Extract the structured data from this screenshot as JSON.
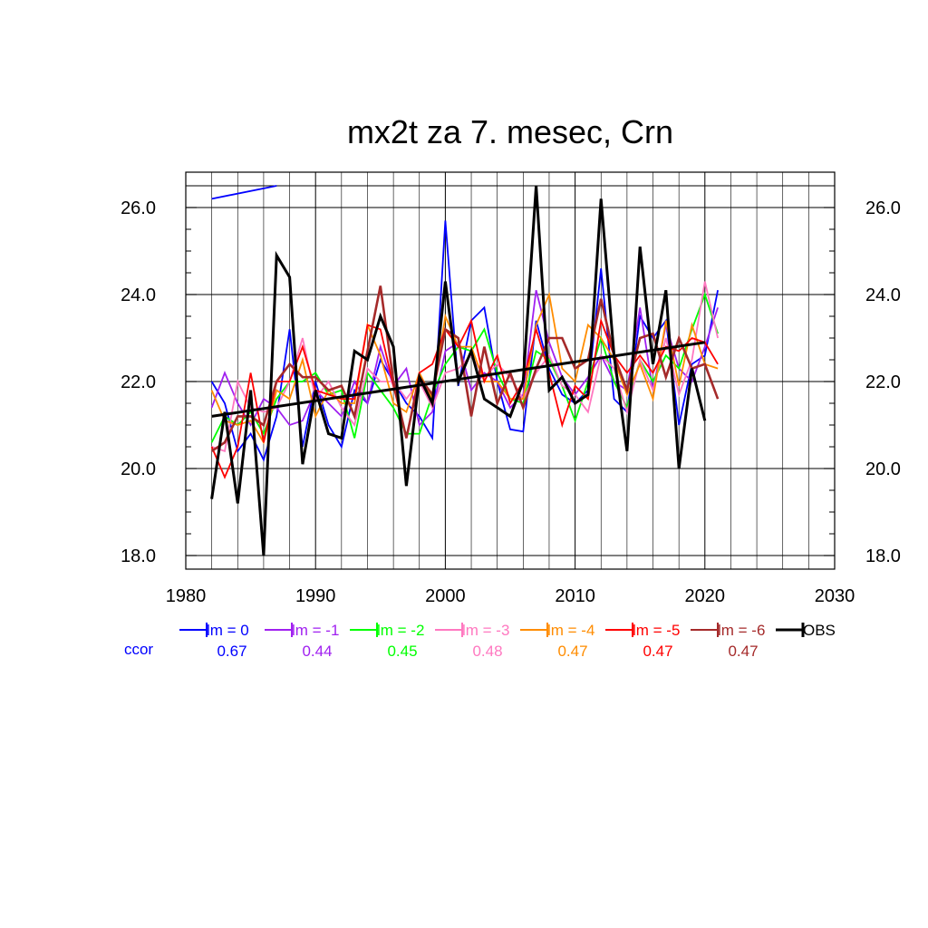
{
  "chart_data": {
    "type": "line",
    "title": "mx2t za 7. mesec, Crn",
    "xlabel": "",
    "ylabel": "",
    "xlim": [
      1980,
      2030
    ],
    "ylim": [
      18.0,
      26.5
    ],
    "x_ticks": [
      1980,
      1990,
      2000,
      2010,
      2020,
      2030
    ],
    "y_ticks": [
      18.0,
      20.0,
      22.0,
      24.0,
      26.0
    ],
    "x_tick_labels": [
      "1980",
      "1990",
      "2000",
      "2010",
      "2020",
      "2030"
    ],
    "y_tick_labels": [
      "18.0",
      "20.0",
      "22.0",
      "24.0",
      "26.0"
    ],
    "x_minor_ticks": [
      1982,
      1984,
      1986,
      1988,
      1992,
      1994,
      1996,
      1998,
      2002,
      2004,
      2006,
      2008,
      2012,
      2014,
      2016,
      2018,
      2022,
      2024,
      2026,
      2028
    ],
    "y_minor_ticks": [
      18.5,
      19.0,
      19.5,
      20.5,
      21.0,
      21.5,
      22.5,
      23.0,
      23.5,
      24.5,
      25.0,
      25.5,
      26.5
    ],
    "grid": true,
    "legend_position": "bottom",
    "ccor_label": "ccor",
    "series": [
      {
        "name": "lm = 0",
        "color": "#0000ff",
        "width": 1.8,
        "ccor": "0.67",
        "x": [
          1982,
          1983,
          1984,
          1985,
          1986,
          1987,
          1988,
          1989,
          1990,
          1991,
          1992,
          1993,
          1994,
          1995,
          1996,
          1997,
          1998,
          1999,
          2000,
          2001,
          2002,
          2003,
          2004,
          2005,
          2006,
          2007,
          2008,
          2009,
          2010,
          2011,
          2012,
          2013,
          2014,
          2015,
          2016,
          2017,
          2018,
          2019,
          2020,
          2021
        ],
        "y": [
          22.0,
          21.5,
          20.4,
          20.8,
          20.2,
          21.2,
          23.2,
          20.5,
          22.0,
          21.0,
          20.5,
          21.8,
          21.5,
          22.5,
          22.0,
          21.5,
          21.2,
          20.7,
          25.7,
          21.9,
          23.4,
          23.7,
          22.0,
          20.9,
          20.85,
          23.4,
          22.3,
          21.7,
          21.5,
          21.8,
          24.6,
          21.6,
          21.3,
          23.5,
          23.0,
          23.4,
          21.0,
          22.4,
          22.6,
          24.1
        ]
      },
      {
        "name": "lm = -1",
        "color": "#a020f0",
        "width": 1.8,
        "ccor": "0.44",
        "x": [
          1982,
          1983,
          1984,
          1985,
          1986,
          1987,
          1988,
          1989,
          1990,
          1991,
          1992,
          1993,
          1994,
          1995,
          1996,
          1997,
          1998,
          1999,
          2000,
          2001,
          2002,
          2003,
          2004,
          2005,
          2006,
          2007,
          2008,
          2009,
          2010,
          2011,
          2012,
          2013,
          2014,
          2015,
          2016,
          2017,
          2018,
          2019,
          2020,
          2021
        ],
        "y": [
          21.4,
          22.2,
          21.5,
          21.0,
          21.6,
          21.4,
          21.0,
          21.1,
          21.8,
          21.5,
          21.2,
          22.0,
          21.5,
          22.8,
          21.9,
          22.3,
          21.0,
          21.3,
          22.7,
          22.9,
          21.8,
          22.2,
          22.0,
          21.4,
          21.7,
          24.1,
          22.9,
          22.1,
          21.7,
          22.1,
          22.6,
          22.0,
          21.8,
          23.7,
          21.8,
          23.3,
          22.3,
          22.0,
          22.8,
          23.7
        ]
      },
      {
        "name": "lm = -2",
        "color": "#00ff00",
        "width": 1.8,
        "ccor": "0.45",
        "x": [
          1982,
          1983,
          1984,
          1985,
          1986,
          1987,
          1988,
          1989,
          1990,
          1991,
          1992,
          1993,
          1994,
          1995,
          1996,
          1997,
          1998,
          1999,
          2000,
          2001,
          2002,
          2003,
          2004,
          2005,
          2006,
          2007,
          2008,
          2009,
          2010,
          2011,
          2012,
          2013,
          2014,
          2015,
          2016,
          2017,
          2018,
          2019,
          2020,
          2021
        ],
        "y": [
          20.6,
          21.2,
          21.0,
          21.3,
          20.8,
          21.6,
          22.0,
          22.0,
          22.2,
          21.7,
          21.8,
          20.7,
          22.2,
          21.8,
          21.4,
          20.8,
          20.8,
          21.7,
          22.4,
          22.8,
          22.7,
          23.2,
          22.2,
          21.6,
          21.5,
          22.7,
          22.5,
          21.9,
          21.1,
          22.0,
          23.0,
          22.0,
          21.4,
          22.5,
          22.0,
          22.6,
          22.3,
          23.2,
          24.0,
          23.1
        ]
      },
      {
        "name": "lm = -3",
        "color": "#ff78c0",
        "width": 1.8,
        "ccor": "0.48",
        "x": [
          1982,
          1983,
          1984,
          1985,
          1986,
          1987,
          1988,
          1989,
          1990,
          1991,
          1992,
          1993,
          1994,
          1995,
          1996,
          1997,
          1998,
          1999,
          2000,
          2001,
          2002,
          2003,
          2004,
          2005,
          2006,
          2007,
          2008,
          2009,
          2010,
          2011,
          2012,
          2013,
          2014,
          2015,
          2016,
          2017,
          2018,
          2019,
          2020,
          2021
        ],
        "y": [
          20.5,
          20.4,
          22.0,
          21.4,
          21.3,
          21.4,
          22.0,
          23.0,
          21.6,
          22.0,
          21.4,
          21.0,
          22.3,
          22.0,
          22.0,
          21.6,
          22.0,
          21.4,
          22.2,
          22.3,
          22.6,
          22.1,
          22.4,
          22.1,
          21.6,
          22.2,
          22.6,
          21.9,
          21.7,
          21.3,
          22.6,
          22.3,
          21.3,
          22.5,
          21.8,
          23.0,
          21.7,
          22.5,
          24.3,
          23.0
        ]
      },
      {
        "name": "lm = -4",
        "color": "#ff8c00",
        "width": 1.8,
        "ccor": "0.47",
        "x": [
          1982,
          1983,
          1984,
          1985,
          1986,
          1987,
          1988,
          1989,
          1990,
          1991,
          1992,
          1993,
          1994,
          1995,
          1996,
          1997,
          1998,
          1999,
          2000,
          2001,
          2002,
          2003,
          2004,
          2005,
          2006,
          2007,
          2008,
          2009,
          2010,
          2011,
          2012,
          2013,
          2014,
          2015,
          2016,
          2017,
          2018,
          2019,
          2020,
          2021
        ],
        "y": [
          21.8,
          21.1,
          21.0,
          21.1,
          20.6,
          21.8,
          21.6,
          22.5,
          21.2,
          21.8,
          21.5,
          21.5,
          23.3,
          22.6,
          21.5,
          21.3,
          22.2,
          21.6,
          23.5,
          22.8,
          22.8,
          22.0,
          22.0,
          21.6,
          21.6,
          23.3,
          24.0,
          22.3,
          22.0,
          23.3,
          23.0,
          22.5,
          21.7,
          22.4,
          21.6,
          23.4,
          21.9,
          23.3,
          22.4,
          22.3
        ]
      },
      {
        "name": "lm = -5",
        "color": "#ff0000",
        "width": 1.8,
        "ccor": "0.47",
        "x": [
          1982,
          1983,
          1984,
          1985,
          1986,
          1987,
          1988,
          1989,
          1990,
          1991,
          1992,
          1993,
          1994,
          1995,
          1996,
          1997,
          1998,
          1999,
          2000,
          2001,
          2002,
          2003,
          2004,
          2005,
          2006,
          2007,
          2008,
          2009,
          2010,
          2011,
          2012,
          2013,
          2014,
          2015,
          2016,
          2017,
          2018,
          2019,
          2020,
          2021
        ],
        "y": [
          20.5,
          19.8,
          20.5,
          22.2,
          20.6,
          22.0,
          22.0,
          22.8,
          21.8,
          21.7,
          21.6,
          21.6,
          23.3,
          23.2,
          21.9,
          20.7,
          22.2,
          22.4,
          23.2,
          22.8,
          23.4,
          22.0,
          22.6,
          21.5,
          22.0,
          23.2,
          22.2,
          21.0,
          21.9,
          21.6,
          23.4,
          22.6,
          22.2,
          22.6,
          22.2,
          22.8,
          22.7,
          23.0,
          22.9,
          22.4
        ]
      },
      {
        "name": "lm = -6",
        "color": "#a52a2a",
        "width": 2.6,
        "ccor": "0.47",
        "x": [
          1982,
          1983,
          1984,
          1985,
          1986,
          1987,
          1988,
          1989,
          1990,
          1991,
          1992,
          1993,
          1994,
          1995,
          1996,
          1997,
          1998,
          1999,
          2000,
          2001,
          2002,
          2003,
          2004,
          2005,
          2006,
          2007,
          2008,
          2009,
          2010,
          2011,
          2012,
          2013,
          2014,
          2015,
          2016,
          2017,
          2018,
          2019,
          2020,
          2021
        ],
        "y": [
          20.4,
          20.6,
          21.2,
          21.2,
          21.0,
          22.0,
          22.4,
          22.1,
          22.1,
          21.8,
          21.9,
          21.2,
          22.7,
          24.2,
          22.0,
          20.7,
          22.1,
          21.7,
          23.2,
          23.0,
          21.2,
          22.8,
          21.5,
          22.2,
          21.4,
          22.3,
          23.0,
          23.0,
          22.3,
          22.5,
          23.9,
          22.6,
          21.8,
          23.0,
          23.1,
          22.1,
          23.0,
          22.3,
          22.4,
          21.6
        ]
      },
      {
        "name": "OBS",
        "color": "#000000",
        "width": 3.0,
        "ccor": "",
        "x": [
          1982,
          1983,
          1984,
          1985,
          1986,
          1987,
          1988,
          1989,
          1990,
          1991,
          1992,
          1993,
          1994,
          1995,
          1996,
          1997,
          1998,
          1999,
          2000,
          2001,
          2002,
          2003,
          2004,
          2005,
          2006,
          2007,
          2008,
          2009,
          2010,
          2011,
          2012,
          2013,
          2014,
          2015,
          2016,
          2017,
          2018,
          2019,
          2020
        ],
        "y": [
          19.3,
          21.3,
          19.2,
          21.8,
          18.0,
          24.9,
          24.4,
          20.1,
          21.8,
          20.8,
          20.7,
          22.7,
          22.5,
          23.5,
          22.8,
          19.6,
          22.1,
          21.5,
          24.3,
          22.0,
          22.7,
          21.6,
          21.4,
          21.2,
          22.0,
          26.5,
          21.8,
          22.1,
          21.5,
          21.7,
          26.2,
          22.6,
          20.4,
          25.1,
          22.4,
          24.1,
          20.0,
          22.3,
          21.1
        ]
      }
    ],
    "trend_line": {
      "color": "#000000",
      "x": [
        1982,
        2020
      ],
      "y": [
        21.2,
        22.9
      ]
    },
    "top_left_line": {
      "color": "#0000ff",
      "x": [
        1982,
        1987
      ],
      "y": [
        26.2,
        26.5
      ]
    }
  }
}
